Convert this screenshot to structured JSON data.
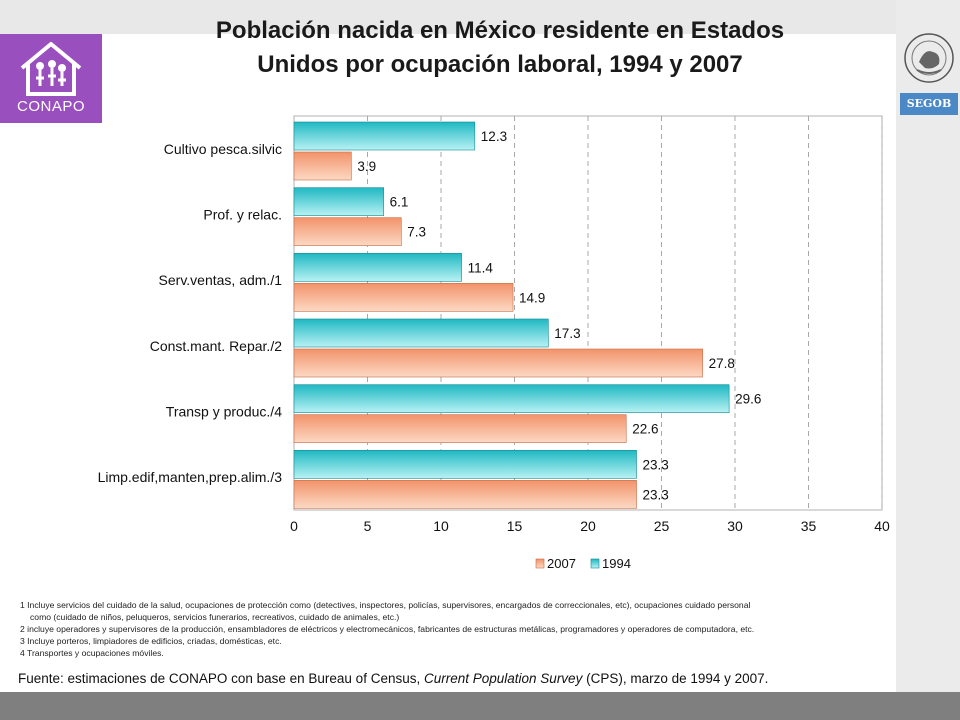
{
  "header": {
    "title_line1": "Población nacida en México residente en Estados",
    "title_line2": "Unidos por ocupación laboral, 1994 y 2007",
    "logo_text": "CONAPO",
    "agency_badge": "SEGOB"
  },
  "colors": {
    "series_2007": "#f2936a",
    "series_2007_light": "#fcd9c4",
    "series_1994": "#1fb8c2",
    "series_1994_light": "#b8f2f4",
    "logo_bg": "#9a4fbf",
    "segob_bg": "#4a88c6"
  },
  "chart_data": {
    "type": "bar",
    "orientation": "horizontal",
    "categories": [
      "Cultivo pesca.silvic",
      "Prof. y relac.",
      "Serv.ventas, adm./1",
      "Const.mant. Repar./2",
      "Transp y produc./4",
      "Limp.edif,manten,prep.alim./3"
    ],
    "series": [
      {
        "name": "1994",
        "values": [
          12.3,
          6.1,
          11.4,
          17.3,
          29.6,
          23.3
        ],
        "labels": [
          "12.3",
          "6.1",
          "11.4",
          "17.3",
          "29.6",
          "23.3"
        ]
      },
      {
        "name": "2007",
        "values": [
          3.9,
          7.3,
          14.9,
          27.8,
          22.6,
          23.3
        ],
        "labels": [
          "3.9",
          "7.3",
          "14.9",
          "27.8",
          "22.6",
          "23.3"
        ]
      }
    ],
    "xlim": [
      0,
      40
    ],
    "xticks": [
      "0",
      "5",
      "10",
      "15",
      "20",
      "25",
      "30",
      "35",
      "40"
    ],
    "grid": "vertical-dashed",
    "legend": [
      "2007",
      "1994"
    ],
    "legend_position": "bottom"
  },
  "notes": [
    "1 Incluye servicios del cuidado de la salud, ocupaciones de protección como (detectives, inspectores, policías, supervisores, encargados de correccionales, etc), ocupaciones cuidado personal",
    "como (cuidado de niños, peluqueros, servicios funerarios, recreativos, cuidado de animales, etc.)",
    "2 incluye operadores y supervisores de la producción, ensambladores de eléctricos y electromecánicos, fabricantes de estructuras metálicas, programadores y operadores de computadora, etc.",
    "3 Incluye porteros, limpiadores de edificios, criadas, domésticas, etc.",
    "4 Transportes y ocupaciones móviles."
  ],
  "source": {
    "prefix": "Fuente: estimaciones de CONAPO con base en Bureau of Census, ",
    "italic": "Current Population Survey",
    "suffix": " (CPS), marzo de 1994 y 2007."
  }
}
